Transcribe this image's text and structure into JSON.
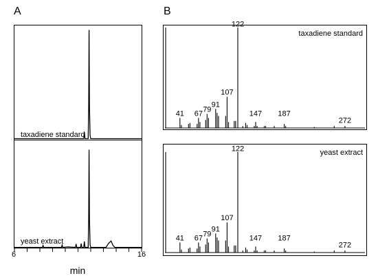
{
  "figure": {
    "panel_a_label": "A",
    "panel_b_label": "B"
  },
  "chart_data": [
    {
      "type": "line",
      "panel": "A",
      "xlabel": "min",
      "xlim": [
        6,
        16
      ],
      "x_tick_labels": [
        "6",
        "16"
      ],
      "traces": [
        {
          "name": "taxadiene standard",
          "points": [
            [
              6,
              0.0
            ],
            [
              11.3,
              0.0
            ],
            [
              11.45,
              0.0
            ],
            [
              11.5,
              0.06
            ],
            [
              11.55,
              0.0
            ],
            [
              11.8,
              0.0
            ],
            [
              11.84,
              0.3
            ],
            [
              11.87,
              1.0
            ],
            [
              11.9,
              0.3
            ],
            [
              11.95,
              0.03
            ],
            [
              12.0,
              0.0
            ],
            [
              16,
              0.0
            ]
          ]
        },
        {
          "name": "yeast extract",
          "points": [
            [
              6,
              0.0
            ],
            [
              8.2,
              0.0
            ],
            [
              8.25,
              0.02
            ],
            [
              8.3,
              0.0
            ],
            [
              9.7,
              0.0
            ],
            [
              9.75,
              0.025
            ],
            [
              9.8,
              0.0
            ],
            [
              10.2,
              0.005
            ],
            [
              10.8,
              0.0
            ],
            [
              10.85,
              0.035
            ],
            [
              10.9,
              0.0
            ],
            [
              11.2,
              0.0
            ],
            [
              11.25,
              0.04
            ],
            [
              11.3,
              0.0
            ],
            [
              11.45,
              0.0
            ],
            [
              11.5,
              0.06
            ],
            [
              11.55,
              0.0
            ],
            [
              11.8,
              0.0
            ],
            [
              11.84,
              0.3
            ],
            [
              11.87,
              1.0
            ],
            [
              11.9,
              0.3
            ],
            [
              11.95,
              0.03
            ],
            [
              12.0,
              0.0
            ],
            [
              13.2,
              0.0
            ],
            [
              13.4,
              0.04
            ],
            [
              13.6,
              0.065
            ],
            [
              13.75,
              0.02
            ],
            [
              13.9,
              0.0
            ],
            [
              16,
              0.0
            ]
          ]
        }
      ]
    },
    {
      "type": "bar",
      "panel": "B",
      "title": "taxadiene standard",
      "xlim": [
        20,
        300
      ],
      "ylim": [
        0,
        1
      ],
      "peak_labels": [
        {
          "mz": 41,
          "y": 0.1
        },
        {
          "mz": 67,
          "y": 0.1
        },
        {
          "mz": 79,
          "y": 0.14
        },
        {
          "mz": 91,
          "y": 0.19
        },
        {
          "mz": 107,
          "y": 0.31
        },
        {
          "mz": 122,
          "y": 0.99
        },
        {
          "mz": 147,
          "y": 0.1
        },
        {
          "mz": 187,
          "y": 0.1
        },
        {
          "mz": 272,
          "y": 0.03
        }
      ],
      "peaks": [
        [
          21,
          1.0
        ],
        [
          41,
          0.1
        ],
        [
          43,
          0.03
        ],
        [
          53,
          0.04
        ],
        [
          55,
          0.05
        ],
        [
          65,
          0.04
        ],
        [
          67,
          0.1
        ],
        [
          69,
          0.06
        ],
        [
          77,
          0.08
        ],
        [
          79,
          0.14
        ],
        [
          81,
          0.1
        ],
        [
          91,
          0.19
        ],
        [
          93,
          0.15
        ],
        [
          95,
          0.12
        ],
        [
          105,
          0.12
        ],
        [
          107,
          0.31
        ],
        [
          109,
          0.06
        ],
        [
          117,
          0.07
        ],
        [
          119,
          0.07
        ],
        [
          122,
          1.0
        ],
        [
          129,
          0.02
        ],
        [
          133,
          0.05
        ],
        [
          135,
          0.03
        ],
        [
          145,
          0.02
        ],
        [
          147,
          0.06
        ],
        [
          149,
          0.02
        ],
        [
          159,
          0.02
        ],
        [
          161,
          0.02
        ],
        [
          173,
          0.02
        ],
        [
          187,
          0.04
        ],
        [
          189,
          0.02
        ],
        [
          229,
          0.01
        ],
        [
          257,
          0.02
        ],
        [
          272,
          0.02
        ]
      ]
    },
    {
      "type": "bar",
      "panel": "B",
      "title": "yeast extract",
      "xlim": [
        20,
        300
      ],
      "ylim": [
        0,
        1
      ],
      "peak_labels": [
        {
          "mz": 41,
          "y": 0.1
        },
        {
          "mz": 67,
          "y": 0.1
        },
        {
          "mz": 79,
          "y": 0.14
        },
        {
          "mz": 91,
          "y": 0.19
        },
        {
          "mz": 107,
          "y": 0.3
        },
        {
          "mz": 122,
          "y": 0.99
        },
        {
          "mz": 147,
          "y": 0.1
        },
        {
          "mz": 187,
          "y": 0.1
        },
        {
          "mz": 272,
          "y": 0.03
        }
      ],
      "peaks": [
        [
          21,
          1.0
        ],
        [
          41,
          0.1
        ],
        [
          43,
          0.03
        ],
        [
          53,
          0.04
        ],
        [
          55,
          0.05
        ],
        [
          65,
          0.04
        ],
        [
          67,
          0.1
        ],
        [
          69,
          0.06
        ],
        [
          77,
          0.08
        ],
        [
          79,
          0.14
        ],
        [
          81,
          0.1
        ],
        [
          91,
          0.19
        ],
        [
          93,
          0.15
        ],
        [
          95,
          0.12
        ],
        [
          105,
          0.12
        ],
        [
          107,
          0.3
        ],
        [
          109,
          0.06
        ],
        [
          117,
          0.07
        ],
        [
          119,
          0.07
        ],
        [
          122,
          1.0
        ],
        [
          129,
          0.02
        ],
        [
          133,
          0.05
        ],
        [
          135,
          0.03
        ],
        [
          145,
          0.02
        ],
        [
          147,
          0.06
        ],
        [
          149,
          0.02
        ],
        [
          159,
          0.02
        ],
        [
          161,
          0.02
        ],
        [
          173,
          0.02
        ],
        [
          187,
          0.04
        ],
        [
          189,
          0.02
        ],
        [
          229,
          0.01
        ],
        [
          257,
          0.02
        ],
        [
          272,
          0.02
        ]
      ]
    }
  ]
}
